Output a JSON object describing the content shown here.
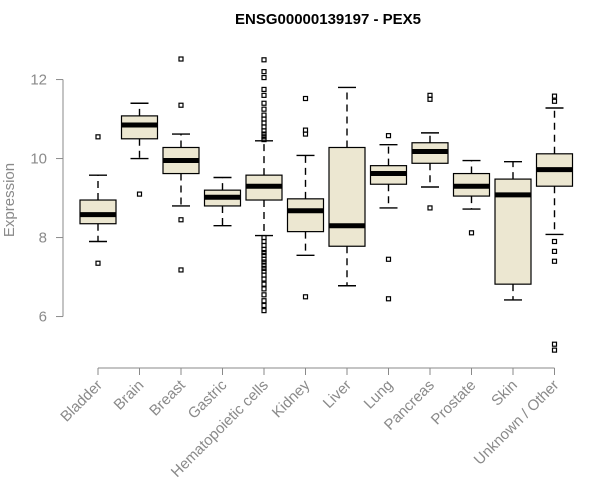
{
  "chart_data": {
    "type": "box",
    "title": "ENSG00000139197 - PEX5",
    "ylabel": "Expression",
    "ylim": [
      4.9,
      12.9
    ],
    "yticks": [
      6,
      8,
      10,
      12
    ],
    "box_color": "#ece7d1",
    "categories": [
      "Bladder",
      "Brain",
      "Breast",
      "Gastric",
      "Hematopoietic cells",
      "Kidney",
      "Liver",
      "Lung",
      "Pancreas",
      "Prostate",
      "Skin",
      "Unknown / Other"
    ],
    "series": [
      {
        "category": "Bladder",
        "whisker_low": 7.9,
        "q1": 8.35,
        "median": 8.58,
        "q3": 8.95,
        "whisker_high": 9.58,
        "outliers": [
          10.55,
          7.35
        ]
      },
      {
        "category": "Brain",
        "whisker_low": 10.0,
        "q1": 10.5,
        "median": 10.85,
        "q3": 11.08,
        "whisker_high": 11.4,
        "outliers": [
          9.1
        ]
      },
      {
        "category": "Breast",
        "whisker_low": 8.8,
        "q1": 9.62,
        "median": 9.95,
        "q3": 10.28,
        "whisker_high": 10.62,
        "outliers": [
          12.52,
          11.35,
          8.45,
          7.18
        ]
      },
      {
        "category": "Gastric",
        "whisker_low": 8.3,
        "q1": 8.8,
        "median": 9.02,
        "q3": 9.2,
        "whisker_high": 9.52,
        "outliers": []
      },
      {
        "category": "Hematopoietic cells",
        "whisker_low": 8.05,
        "q1": 8.95,
        "median": 9.3,
        "q3": 9.58,
        "whisker_high": 10.45,
        "outliers": [
          12.5,
          12.2,
          12.05,
          11.75,
          11.6,
          11.4,
          11.25,
          11.1,
          11.0,
          10.9,
          10.8,
          10.7,
          10.62,
          10.55,
          10.48,
          8.0,
          7.9,
          7.8,
          7.7,
          7.62,
          7.55,
          7.45,
          7.38,
          7.3,
          7.22,
          7.15,
          7.05,
          6.95,
          6.82,
          6.7,
          6.55,
          6.4,
          6.28,
          6.15
        ]
      },
      {
        "category": "Kidney",
        "whisker_low": 7.55,
        "q1": 8.15,
        "median": 8.68,
        "q3": 8.98,
        "whisker_high": 10.08,
        "outliers": [
          11.52,
          10.72,
          10.62,
          6.5
        ]
      },
      {
        "category": "Liver",
        "whisker_low": 6.78,
        "q1": 7.78,
        "median": 8.3,
        "q3": 10.28,
        "whisker_high": 11.8,
        "outliers": []
      },
      {
        "category": "Lung",
        "whisker_low": 8.75,
        "q1": 9.35,
        "median": 9.62,
        "q3": 9.82,
        "whisker_high": 10.35,
        "outliers": [
          10.58,
          7.45,
          6.45
        ]
      },
      {
        "category": "Pancreas",
        "whisker_low": 9.28,
        "q1": 9.88,
        "median": 10.18,
        "q3": 10.4,
        "whisker_high": 10.65,
        "outliers": [
          11.6,
          11.5,
          8.75
        ]
      },
      {
        "category": "Prostate",
        "whisker_low": 8.72,
        "q1": 9.05,
        "median": 9.3,
        "q3": 9.62,
        "whisker_high": 9.95,
        "outliers": [
          8.12
        ]
      },
      {
        "category": "Skin",
        "whisker_low": 6.42,
        "q1": 6.82,
        "median": 9.08,
        "q3": 9.48,
        "whisker_high": 9.92,
        "outliers": []
      },
      {
        "category": "Unknown / Other",
        "whisker_low": 8.08,
        "q1": 9.3,
        "median": 9.72,
        "q3": 10.12,
        "whisker_high": 11.28,
        "outliers": [
          11.58,
          11.45,
          7.9,
          7.65,
          7.4,
          5.3,
          5.15
        ]
      }
    ]
  }
}
